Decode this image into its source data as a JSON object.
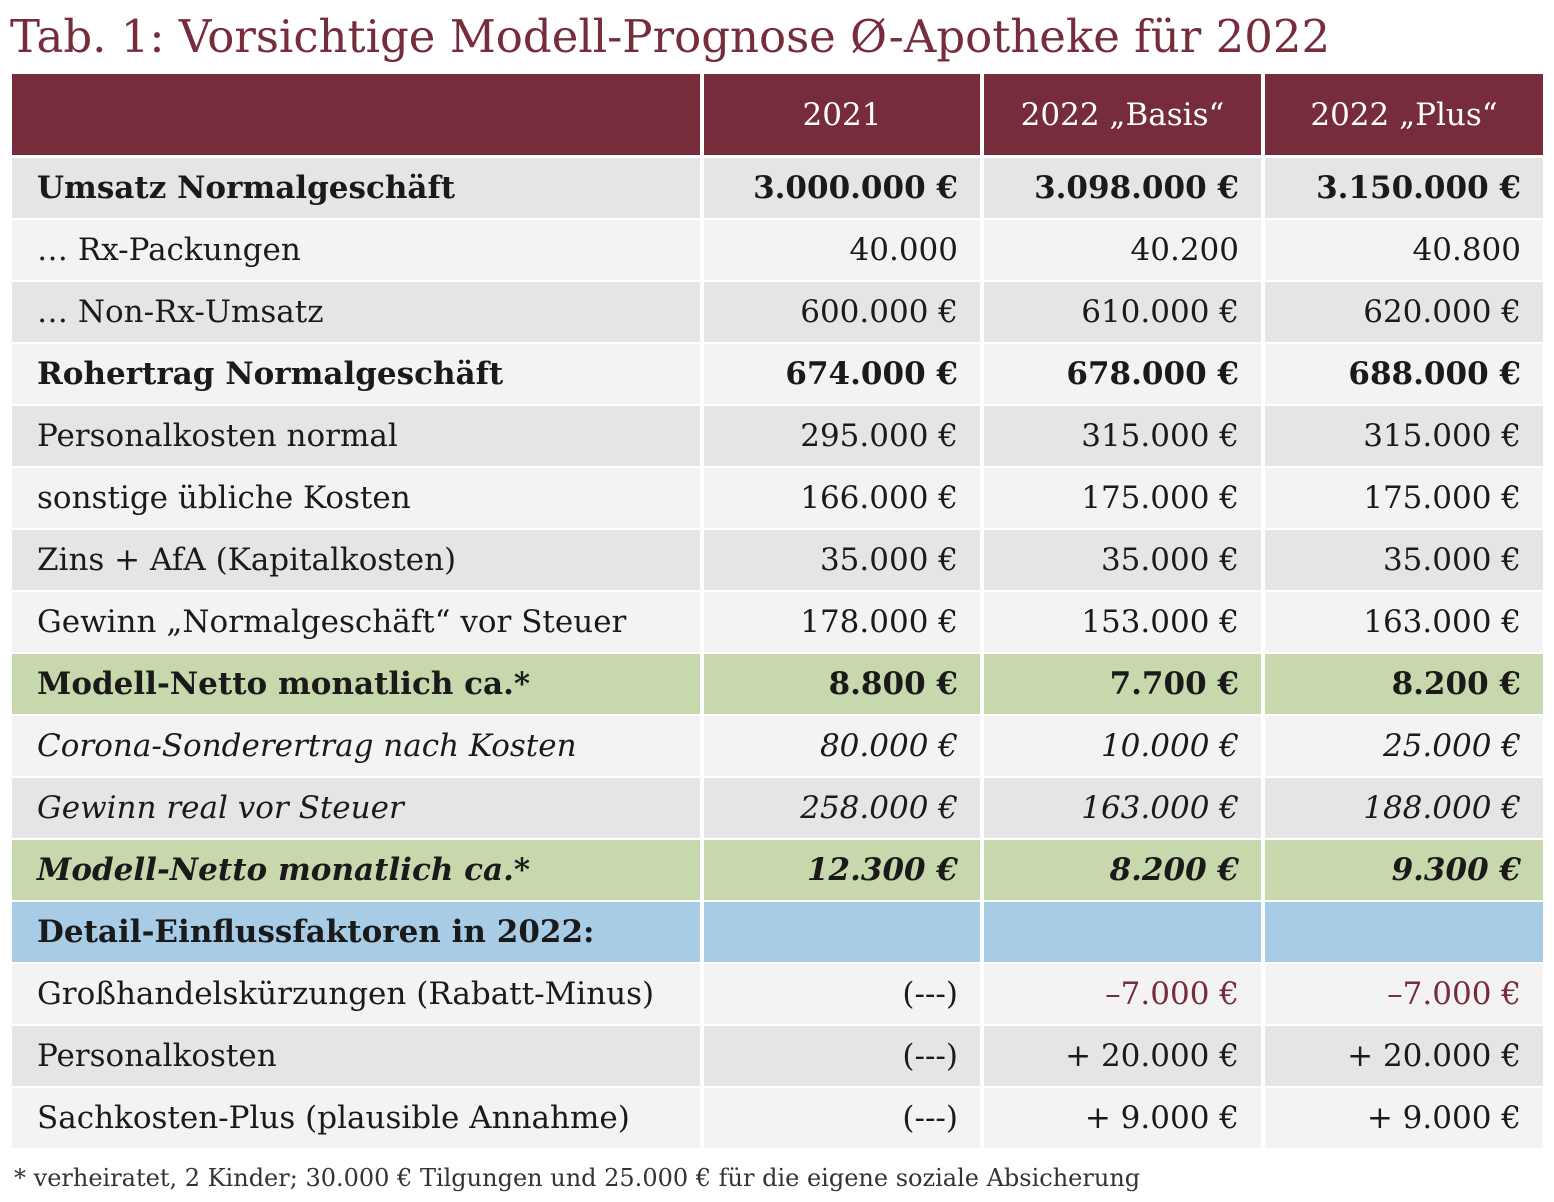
{
  "title": "Tab. 1: Vorsichtige Modell-Prognose Ø-Apotheke für 2022",
  "headers": [
    "",
    "2021",
    "2022 „Basis“",
    "2022 „Plus“"
  ],
  "rows": [
    {
      "label": "Umsatz Normalgeschäft",
      "v2021": "3.000.000 €",
      "basis": "3.098.000 €",
      "plus": "3.150.000 €",
      "style": "bold"
    },
    {
      "label": "… Rx-Packungen",
      "v2021": "40.000",
      "basis": "40.200",
      "plus": "40.800",
      "style": "normal"
    },
    {
      "label": "… Non-Rx-Umsatz",
      "v2021": "600.000 €",
      "basis": "610.000 €",
      "plus": "620.000 €",
      "style": "normal"
    },
    {
      "label": "Rohertrag Normalgeschäft",
      "v2021": "674.000 €",
      "basis": "678.000 €",
      "plus": "688.000 €",
      "style": "bold"
    },
    {
      "label": "Personalkosten normal",
      "v2021": "295.000 €",
      "basis": "315.000 €",
      "plus": "315.000 €",
      "style": "normal"
    },
    {
      "label": "sonstige übliche Kosten",
      "v2021": "166.000 €",
      "basis": "175.000 €",
      "plus": "175.000 €",
      "style": "normal"
    },
    {
      "label": "Zins + AfA (Kapitalkosten)",
      "v2021": "35.000 €",
      "basis": "35.000 €",
      "plus": "35.000 €",
      "style": "normal"
    },
    {
      "label": "Gewinn „Normalgeschäft“ vor Steuer",
      "v2021": "178.000 €",
      "basis": "153.000 €",
      "plus": "163.000 €",
      "style": "normal"
    },
    {
      "label": "Modell-Netto monatlich ca.*",
      "v2021": "8.800 €",
      "basis": "7.700 €",
      "plus": "8.200 €",
      "style": "bold-green"
    },
    {
      "label": "Corona-Sonderertrag nach Kosten",
      "v2021": "80.000 €",
      "basis": "10.000 €",
      "plus": "25.000 €",
      "style": "italic"
    },
    {
      "label": "Gewinn real vor Steuer",
      "v2021": "258.000 €",
      "basis": "163.000 €",
      "plus": "188.000 €",
      "style": "italic"
    },
    {
      "label": "Modell-Netto monatlich ca.*",
      "v2021": "12.300 €",
      "basis": "8.200 €",
      "plus": "9.300 €",
      "style": "bold-italic-green"
    },
    {
      "label": "Detail-Einflussfaktoren in 2022:",
      "v2021": "",
      "basis": "",
      "plus": "",
      "style": "bold-blue"
    },
    {
      "label": "Großhandelskürzungen (Rabatt-Minus)",
      "v2021": "(---)",
      "basis": "–7.000 €",
      "plus": "–7.000 €",
      "style": "normal"
    },
    {
      "label": "Personalkosten",
      "v2021": "(---)",
      "basis": "+ 20.000 €",
      "plus": "+ 20.000 €",
      "style": "normal"
    },
    {
      "label": "Sachkosten-Plus (plausible Annahme)",
      "v2021": "(---)",
      "basis": "+ 9.000 €",
      "plus": "+ 9.000 €",
      "style": "normal"
    }
  ],
  "footnote": "* verheiratet, 2 Kinder; 30.000 € Tilgungen und 25.000 € für die eigene soziale Absicherung",
  "colors": {
    "header_bg": "#762c3b",
    "row_dark": "#e5e5e5",
    "row_light": "#f3f3f3",
    "highlight_green": "#c7d9ac",
    "section_blue": "#a9cce6",
    "negative_text": "#762c3b"
  }
}
